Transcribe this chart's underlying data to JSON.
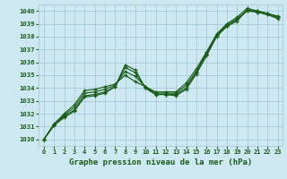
{
  "background_color": "#cde8f0",
  "grid_color": "#aacfdc",
  "line_color": "#1a5c1a",
  "title": "Graphe pression niveau de la mer (hPa)",
  "xlim": [
    -0.5,
    23.5
  ],
  "ylim": [
    1029.5,
    1040.5
  ],
  "yticks": [
    1030,
    1031,
    1032,
    1033,
    1034,
    1035,
    1036,
    1037,
    1038,
    1039,
    1040
  ],
  "xticks": [
    0,
    1,
    2,
    3,
    4,
    5,
    6,
    7,
    8,
    9,
    10,
    11,
    12,
    13,
    14,
    15,
    16,
    17,
    18,
    19,
    20,
    21,
    22,
    23
  ],
  "series": [
    [
      1030.0,
      1031.1,
      1031.7,
      1032.2,
      1033.3,
      1033.4,
      1033.6,
      1034.1,
      1035.8,
      1035.4,
      1034.0,
      1033.5,
      1033.5,
      1033.4,
      1033.9,
      1035.1,
      1036.5,
      1038.0,
      1038.8,
      1039.2,
      1040.1,
      1039.9,
      1039.8,
      1039.5
    ],
    [
      1030.0,
      1031.1,
      1031.8,
      1032.3,
      1033.4,
      1033.5,
      1033.7,
      1034.1,
      1035.6,
      1035.2,
      1034.0,
      1033.5,
      1033.5,
      1033.5,
      1034.0,
      1035.2,
      1036.6,
      1038.1,
      1038.8,
      1039.3,
      1040.0,
      1039.9,
      1039.7,
      1039.4
    ],
    [
      1030.0,
      1031.2,
      1031.9,
      1032.5,
      1033.6,
      1033.7,
      1033.9,
      1034.2,
      1035.3,
      1034.9,
      1034.1,
      1033.6,
      1033.6,
      1033.6,
      1034.2,
      1035.3,
      1036.7,
      1038.1,
      1038.9,
      1039.4,
      1040.0,
      1040.0,
      1039.8,
      1039.5
    ],
    [
      1030.0,
      1031.2,
      1032.0,
      1032.7,
      1033.8,
      1033.9,
      1034.1,
      1034.3,
      1035.0,
      1034.5,
      1034.1,
      1033.7,
      1033.7,
      1033.7,
      1034.4,
      1035.5,
      1036.8,
      1038.2,
      1039.0,
      1039.5,
      1040.2,
      1040.0,
      1039.8,
      1039.6
    ]
  ]
}
